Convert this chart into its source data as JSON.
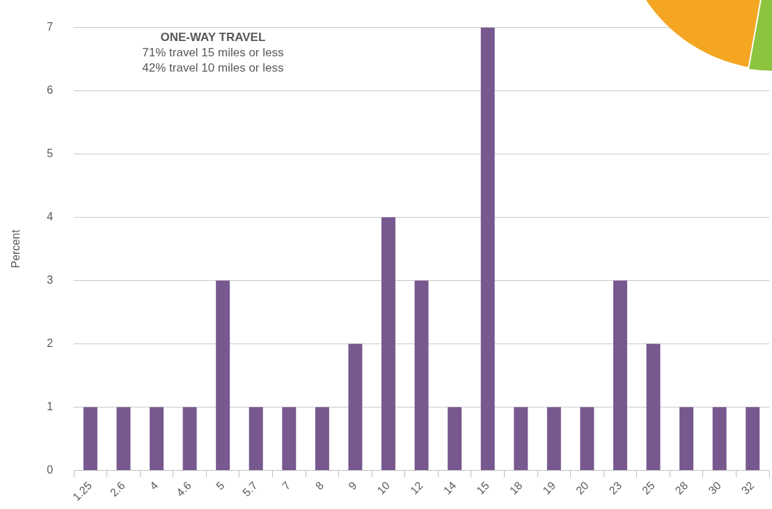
{
  "chart_data": {
    "type": "bar",
    "title": "ONE-WAY TRAVEL",
    "ylabel": "Percent",
    "annotations": [
      "71% travel 15 miles or less",
      "42% travel 10 miles or less"
    ],
    "categories": [
      "1.25",
      "2.6",
      "4",
      "4.6",
      "5",
      "5.7",
      "7",
      "8",
      "9",
      "10",
      "12",
      "14",
      "15",
      "18",
      "19",
      "20",
      "23",
      "25",
      "28",
      "30",
      "32"
    ],
    "values": [
      1,
      1,
      1,
      1,
      3,
      1,
      1,
      1,
      2,
      4,
      3,
      1,
      7,
      1,
      1,
      1,
      3,
      2,
      1,
      1,
      1
    ],
    "color": "#77588f",
    "ylim": [
      0,
      7
    ],
    "yticks": [
      0,
      1,
      2,
      3,
      4,
      5,
      6,
      7
    ],
    "grid": "y",
    "legend": false
  }
}
